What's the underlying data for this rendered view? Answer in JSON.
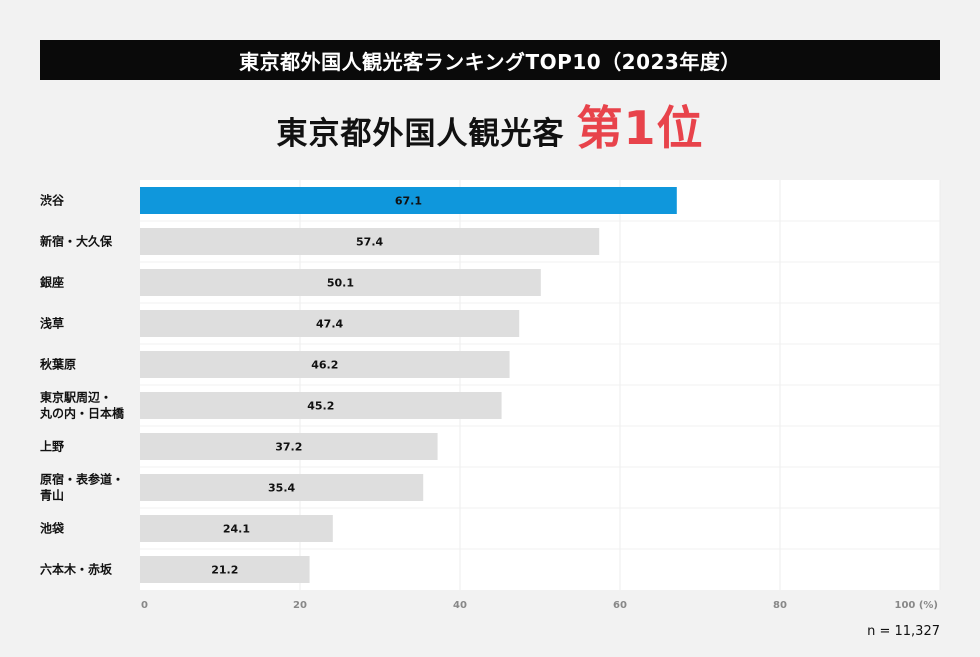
{
  "header": {
    "title": "東京都外国人観光客ランキングTOP10（2023年度）"
  },
  "headline": {
    "main": "東京都外国人観光客",
    "rank": "第1位",
    "rank_color": "#e8434b"
  },
  "colors": {
    "highlight": "#0f97dc",
    "default_bar": "#dedede"
  },
  "chart_data": {
    "type": "bar",
    "orientation": "horizontal",
    "categories": [
      [
        "渋谷"
      ],
      [
        "新宿・大久保"
      ],
      [
        "銀座"
      ],
      [
        "浅草"
      ],
      [
        "秋葉原"
      ],
      [
        "東京駅周辺・",
        "丸の内・日本橋"
      ],
      [
        "上野"
      ],
      [
        "原宿・表参道・",
        "青山"
      ],
      [
        "池袋"
      ],
      [
        "六本木・赤坂"
      ]
    ],
    "values": [
      67.1,
      57.4,
      50.1,
      47.4,
      46.2,
      45.2,
      37.2,
      35.4,
      24.1,
      21.2
    ],
    "highlight_index": 0,
    "xlim": [
      0,
      100
    ],
    "xticks": [
      0,
      20,
      40,
      60,
      80,
      100
    ],
    "xtick_labels": [
      "0",
      "20",
      "40",
      "60",
      "80",
      "100 (%)"
    ],
    "grid": true,
    "title": "",
    "xlabel": "",
    "ylabel": ""
  },
  "footer": {
    "sample_size": "n = 11,327"
  }
}
